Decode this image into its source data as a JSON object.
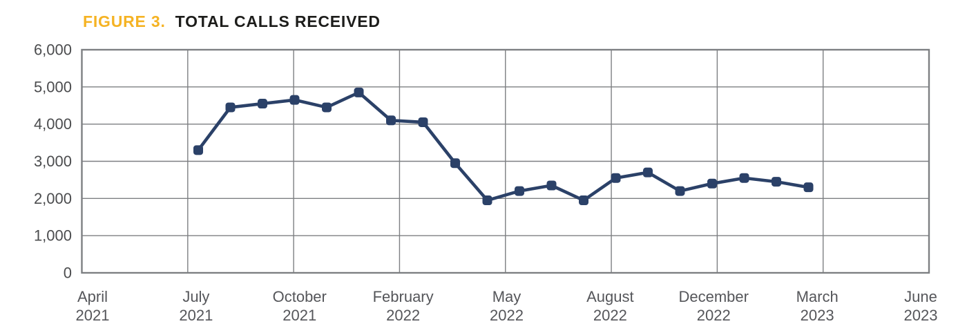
{
  "header": {
    "figure_label": "FIGURE 3.",
    "title": "TOTAL CALLS RECEIVED"
  },
  "colors": {
    "accent_gold": "#F5B324",
    "title_text": "#1D1D1B",
    "series_navy": "#2B4168",
    "grid_gray": "#7D7F82",
    "y_axis_label": "#4B4C4E",
    "x_axis_label": "#55565A"
  },
  "chart_data": {
    "type": "line",
    "title": "TOTAL CALLS RECEIVED",
    "grid": true,
    "legend_position": "none",
    "y_axis": {
      "min": 0,
      "max": 6000,
      "step": 1000,
      "tick_labels": [
        "0",
        "1,000",
        "2,000",
        "3,000",
        "4,000",
        "5,000",
        "6,000"
      ]
    },
    "x_axis": {
      "tick_labels": [
        {
          "month": "April",
          "year": "2021"
        },
        {
          "month": "July",
          "year": "2021"
        },
        {
          "month": "October",
          "year": "2021"
        },
        {
          "month": "February",
          "year": "2022"
        },
        {
          "month": "May",
          "year": "2022"
        },
        {
          "month": "August",
          "year": "2022"
        },
        {
          "month": "December",
          "year": "2022"
        },
        {
          "month": "March",
          "year": "2023"
        },
        {
          "month": "June",
          "year": "2023"
        }
      ]
    },
    "series": [
      {
        "name": "Total calls received",
        "color": "#2B4168",
        "x": [
          "Jul 2021",
          "Aug 2021",
          "Sep 2021",
          "Oct 2021",
          "Nov 2021",
          "Dec 2021",
          "Jan 2022",
          "Feb 2022",
          "Mar 2022",
          "Apr 2022",
          "May 2022",
          "Jun 2022",
          "Jul 2022",
          "Aug 2022",
          "Sep 2022",
          "Oct 2022",
          "Nov 2022",
          "Dec 2022",
          "Jan 2023",
          "Feb 2023"
        ],
        "values": [
          3300,
          4450,
          4550,
          4650,
          4450,
          4850,
          4100,
          4050,
          2950,
          1950,
          2200,
          2350,
          1950,
          2550,
          2700,
          2200,
          2400,
          2550,
          2450,
          2300
        ]
      }
    ]
  }
}
